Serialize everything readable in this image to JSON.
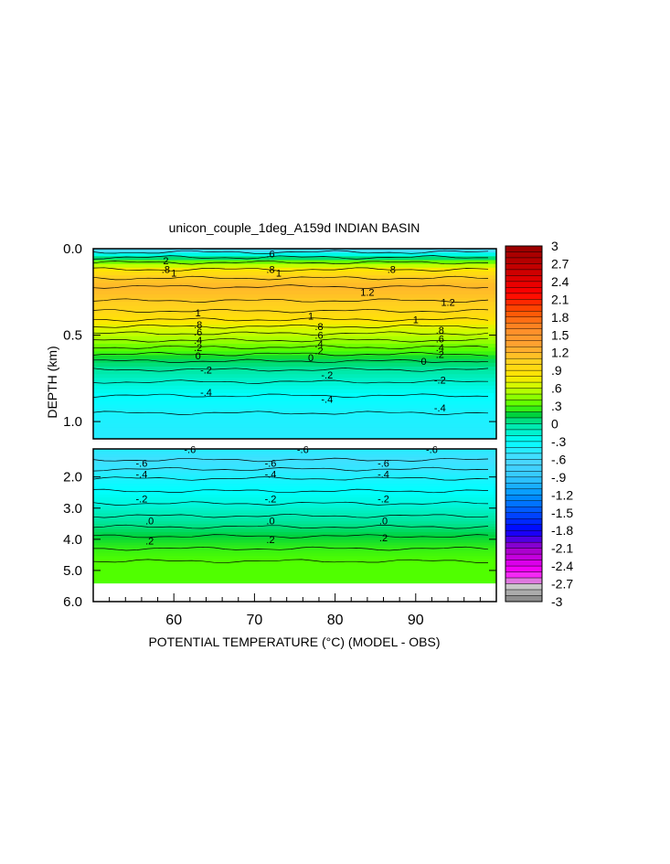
{
  "chart_data": {
    "type": "heatmap",
    "title": "unicon_couple_1deg_A159d INDIAN BASIN",
    "xlabel": "POTENTIAL TEMPERATURE (°C) (MODEL - OBS)",
    "ylabel": "DEPTH (km)",
    "xlim": [
      50,
      100
    ],
    "x_ticks": [
      "60",
      "70",
      "80",
      "90"
    ],
    "upper_panel": {
      "ylim": [
        0.0,
        1.1
      ],
      "y_ticks": [
        "0.0",
        "0.5",
        "1.0"
      ],
      "layers": [
        {
          "depth": 0.0,
          "value": -0.8
        },
        {
          "depth": 0.02,
          "value": -0.4
        },
        {
          "depth": 0.05,
          "value": 0.0
        },
        {
          "depth": 0.08,
          "value": 0.4
        },
        {
          "depth": 0.12,
          "value": 0.8
        },
        {
          "depth": 0.17,
          "value": 1.1
        },
        {
          "depth": 0.22,
          "value": 1.2
        },
        {
          "depth": 0.3,
          "value": 1.1
        },
        {
          "depth": 0.36,
          "value": 1.0
        },
        {
          "depth": 0.41,
          "value": 0.85
        },
        {
          "depth": 0.45,
          "value": 0.7
        },
        {
          "depth": 0.49,
          "value": 0.6
        },
        {
          "depth": 0.53,
          "value": 0.5
        },
        {
          "depth": 0.57,
          "value": 0.35
        },
        {
          "depth": 0.61,
          "value": 0.25
        },
        {
          "depth": 0.65,
          "value": 0.1
        },
        {
          "depth": 0.7,
          "value": 0.0
        },
        {
          "depth": 0.77,
          "value": -0.15
        },
        {
          "depth": 0.85,
          "value": -0.3
        },
        {
          "depth": 0.95,
          "value": -0.4
        },
        {
          "depth": 1.1,
          "value": -0.45
        }
      ],
      "contour_labels": [
        {
          "x": 59,
          "depth": 0.07,
          "text": "2"
        },
        {
          "x": 59,
          "depth": 0.12,
          "text": ".8"
        },
        {
          "x": 60,
          "depth": 0.14,
          "text": "1"
        },
        {
          "x": 72,
          "depth": 0.03,
          "text": ".6"
        },
        {
          "x": 72,
          "depth": 0.12,
          "text": ".8"
        },
        {
          "x": 73,
          "depth": 0.14,
          "text": "1"
        },
        {
          "x": 87,
          "depth": 0.12,
          "text": ".8"
        },
        {
          "x": 84,
          "depth": 0.25,
          "text": "1.2"
        },
        {
          "x": 94,
          "depth": 0.31,
          "text": "1.2"
        },
        {
          "x": 63,
          "depth": 0.37,
          "text": "1"
        },
        {
          "x": 77,
          "depth": 0.39,
          "text": "1"
        },
        {
          "x": 90,
          "depth": 0.41,
          "text": "1"
        },
        {
          "x": 63,
          "depth": 0.44,
          "text": ".8"
        },
        {
          "x": 63,
          "depth": 0.48,
          "text": ".6"
        },
        {
          "x": 63,
          "depth": 0.53,
          "text": ".4"
        },
        {
          "x": 63,
          "depth": 0.57,
          "text": ".2"
        },
        {
          "x": 63,
          "depth": 0.62,
          "text": "0"
        },
        {
          "x": 64,
          "depth": 0.7,
          "text": "-.2"
        },
        {
          "x": 64,
          "depth": 0.83,
          "text": "-.4"
        },
        {
          "x": 78,
          "depth": 0.45,
          "text": ".8"
        },
        {
          "x": 78,
          "depth": 0.5,
          "text": ".6"
        },
        {
          "x": 78,
          "depth": 0.55,
          "text": ".4"
        },
        {
          "x": 78,
          "depth": 0.59,
          "text": ".2"
        },
        {
          "x": 77,
          "depth": 0.63,
          "text": "0"
        },
        {
          "x": 79,
          "depth": 0.73,
          "text": "-.2"
        },
        {
          "x": 79,
          "depth": 0.87,
          "text": "-.4"
        },
        {
          "x": 93,
          "depth": 0.47,
          "text": ".8"
        },
        {
          "x": 93,
          "depth": 0.52,
          "text": ".6"
        },
        {
          "x": 93,
          "depth": 0.57,
          "text": ".4"
        },
        {
          "x": 93,
          "depth": 0.61,
          "text": ".2"
        },
        {
          "x": 91,
          "depth": 0.65,
          "text": "0"
        },
        {
          "x": 93,
          "depth": 0.76,
          "text": "-.2"
        },
        {
          "x": 93,
          "depth": 0.92,
          "text": "-.4"
        }
      ]
    },
    "lower_panel": {
      "ylim": [
        1.1,
        6.0
      ],
      "y_ticks": [
        "2.0",
        "3.0",
        "4.0",
        "5.0",
        "6.0"
      ],
      "layers": [
        {
          "depth": 1.1,
          "value": -0.45
        },
        {
          "depth": 1.45,
          "value": -0.55
        },
        {
          "depth": 1.75,
          "value": -0.5
        },
        {
          "depth": 2.05,
          "value": -0.4
        },
        {
          "depth": 2.45,
          "value": -0.3
        },
        {
          "depth": 2.85,
          "value": -0.2
        },
        {
          "depth": 3.25,
          "value": -0.05
        },
        {
          "depth": 3.6,
          "value": 0.05
        },
        {
          "depth": 3.9,
          "value": 0.15
        },
        {
          "depth": 4.3,
          "value": 0.25
        },
        {
          "depth": 4.7,
          "value": 0.3
        },
        {
          "depth": 5.4,
          "value": 0.3
        }
      ],
      "ocean_floor_depth": 5.4,
      "contour_labels": [
        {
          "x": 62,
          "depth": 1.12,
          "text": "-.6"
        },
        {
          "x": 76,
          "depth": 1.12,
          "text": "-.6"
        },
        {
          "x": 92,
          "depth": 1.12,
          "text": "-.6"
        },
        {
          "x": 56,
          "depth": 1.55,
          "text": "-.6"
        },
        {
          "x": 72,
          "depth": 1.55,
          "text": "-.6"
        },
        {
          "x": 86,
          "depth": 1.55,
          "text": "-.6"
        },
        {
          "x": 56,
          "depth": 1.9,
          "text": "-.4"
        },
        {
          "x": 72,
          "depth": 1.9,
          "text": "-.4"
        },
        {
          "x": 86,
          "depth": 1.9,
          "text": "-.4"
        },
        {
          "x": 56,
          "depth": 2.7,
          "text": "-.2"
        },
        {
          "x": 72,
          "depth": 2.7,
          "text": "-.2"
        },
        {
          "x": 86,
          "depth": 2.7,
          "text": "-.2"
        },
        {
          "x": 57,
          "depth": 3.4,
          "text": ".0"
        },
        {
          "x": 72,
          "depth": 3.4,
          "text": ".0"
        },
        {
          "x": 86,
          "depth": 3.4,
          "text": ".0"
        },
        {
          "x": 57,
          "depth": 4.05,
          "text": ".2"
        },
        {
          "x": 72,
          "depth": 4.0,
          "text": ".2"
        },
        {
          "x": 86,
          "depth": 3.95,
          "text": ".2"
        }
      ]
    },
    "colorbar": {
      "ticks": [
        "3",
        "2.7",
        "2.4",
        "2.1",
        "1.8",
        "1.5",
        "1.2",
        ".9",
        ".6",
        ".3",
        "0",
        "-.3",
        "-.6",
        "-.9",
        "-1.2",
        "-1.5",
        "-1.8",
        "-2.1",
        "-2.4",
        "-2.7",
        "-3"
      ],
      "range": [
        -3,
        3
      ],
      "stops": [
        {
          "value": -3.0,
          "color": "#808080"
        },
        {
          "value": -2.75,
          "color": "#c8c8c8"
        },
        {
          "value": -2.5,
          "color": "#ff00ff"
        },
        {
          "value": -2.1,
          "color": "#a000c8"
        },
        {
          "value": -1.8,
          "color": "#0000ff"
        },
        {
          "value": -1.5,
          "color": "#0050ff"
        },
        {
          "value": -1.2,
          "color": "#0096ff"
        },
        {
          "value": -0.9,
          "color": "#33c8ff"
        },
        {
          "value": -0.6,
          "color": "#4dd9ff"
        },
        {
          "value": -0.3,
          "color": "#00ffff"
        },
        {
          "value": 0.0,
          "color": "#00e6a0"
        },
        {
          "value": 0.15,
          "color": "#00d23c"
        },
        {
          "value": 0.3,
          "color": "#50ff00"
        },
        {
          "value": 0.6,
          "color": "#c8ff00"
        },
        {
          "value": 0.8,
          "color": "#ffe600"
        },
        {
          "value": 1.05,
          "color": "#ffd21e"
        },
        {
          "value": 1.3,
          "color": "#ffa532"
        },
        {
          "value": 1.6,
          "color": "#ff8c28"
        },
        {
          "value": 1.9,
          "color": "#ff5000"
        },
        {
          "value": 2.2,
          "color": "#ff0000"
        },
        {
          "value": 2.6,
          "color": "#c80000"
        },
        {
          "value": 3.0,
          "color": "#960000"
        }
      ]
    }
  }
}
